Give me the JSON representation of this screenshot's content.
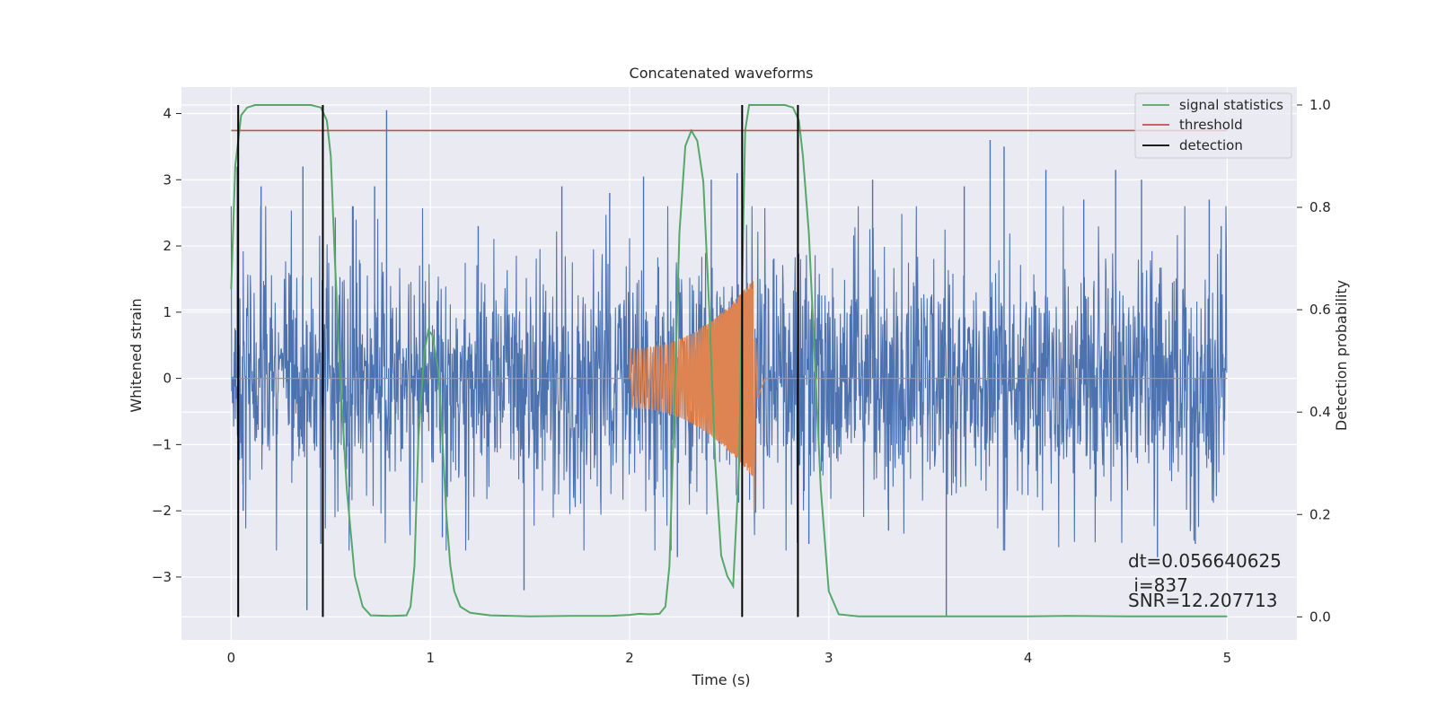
{
  "chart_data": {
    "type": "line",
    "title": "Concatenated waveforms",
    "xlabel": "Time (s)",
    "ylabel": "Whitened strain",
    "y2label": "Detection probability",
    "xlim": [
      -0.25,
      5.35
    ],
    "ylim": [
      -3.95,
      4.4
    ],
    "y2lim": [
      -0.045,
      1.035
    ],
    "xticks": [
      0,
      1,
      2,
      3,
      4,
      5
    ],
    "yticks": [
      -3,
      -2,
      -1,
      0,
      1,
      2,
      3,
      4
    ],
    "y2ticks": [
      0.0,
      0.2,
      0.4,
      0.6,
      0.8,
      1.0
    ],
    "xtick_labels": [
      "0",
      "1",
      "2",
      "3",
      "4",
      "5"
    ],
    "ytick_labels": [
      "−3",
      "−2",
      "−1",
      "0",
      "1",
      "2",
      "3",
      "4"
    ],
    "y2tick_labels": [
      "0.0",
      "0.2",
      "0.4",
      "0.6",
      "0.8",
      "1.0"
    ],
    "grid": true,
    "legend_position": "top-right",
    "strain_noise": {
      "color": "#4c72b0",
      "x_start": 0.0,
      "x_end": 5.0,
      "base_amplitude": 0.85,
      "spikes": [
        {
          "x": 0.03,
          "y": 3.2
        },
        {
          "x": 0.06,
          "y": -2.0
        },
        {
          "x": 0.15,
          "y": 2.9
        },
        {
          "x": 0.36,
          "y": 3.2
        },
        {
          "x": 0.38,
          "y": -3.5
        },
        {
          "x": 0.78,
          "y": 4.05
        },
        {
          "x": 0.45,
          "y": -2.5
        },
        {
          "x": 0.72,
          "y": 2.9
        },
        {
          "x": 1.06,
          "y": -2.4
        },
        {
          "x": 1.47,
          "y": -3.2
        },
        {
          "x": 1.66,
          "y": 2.9
        },
        {
          "x": 1.9,
          "y": 2.8
        },
        {
          "x": 2.07,
          "y": 3.05
        },
        {
          "x": 2.24,
          "y": -2.7
        },
        {
          "x": 2.41,
          "y": 3.0
        },
        {
          "x": 2.54,
          "y": 3.1
        },
        {
          "x": 3.22,
          "y": 3.0
        },
        {
          "x": 3.59,
          "y": -3.6
        },
        {
          "x": 3.68,
          "y": 2.9
        },
        {
          "x": 3.81,
          "y": 3.6
        },
        {
          "x": 3.88,
          "y": 3.5
        },
        {
          "x": 4.09,
          "y": 3.15
        },
        {
          "x": 4.28,
          "y": 2.7
        },
        {
          "x": 4.44,
          "y": 3.15
        },
        {
          "x": 4.57,
          "y": 3.0
        },
        {
          "x": 4.65,
          "y": -2.7
        },
        {
          "x": 4.84,
          "y": -2.5
        },
        {
          "x": 4.91,
          "y": 2.7
        },
        {
          "x": 4.97,
          "y": 2.3
        },
        {
          "x": 3.3,
          "y": -2.3
        },
        {
          "x": 1.24,
          "y": 2.3
        },
        {
          "x": 2.9,
          "y": -2.5
        }
      ]
    },
    "strain_signal": {
      "color": "#dd8452",
      "onset": 2.0,
      "merger": 2.62,
      "ringdown_end": 2.68,
      "amplitude_start": 0.45,
      "amplitude_peak": 1.5,
      "min_value": -2.0
    },
    "series": [
      {
        "name": "signal statistics",
        "color": "#55a868",
        "axis": "right",
        "x": [
          0.0,
          0.02,
          0.05,
          0.08,
          0.12,
          0.2,
          0.3,
          0.4,
          0.45,
          0.48,
          0.5,
          0.52,
          0.55,
          0.58,
          0.62,
          0.66,
          0.7,
          0.8,
          0.88,
          0.9,
          0.92,
          0.94,
          0.97,
          0.99,
          1.01,
          1.04,
          1.06,
          1.08,
          1.1,
          1.12,
          1.15,
          1.2,
          1.3,
          1.5,
          1.7,
          1.9,
          2.0,
          2.05,
          2.1,
          2.15,
          2.18,
          2.2,
          2.22,
          2.25,
          2.28,
          2.31,
          2.34,
          2.37,
          2.4,
          2.43,
          2.46,
          2.49,
          2.52,
          2.55,
          2.57,
          2.58,
          2.6,
          2.62,
          2.65,
          2.72,
          2.78,
          2.82,
          2.85,
          2.87,
          2.9,
          2.93,
          2.96,
          3.0,
          3.05,
          3.15,
          3.5,
          4.0,
          4.2,
          4.5,
          5.0
        ],
        "values": [
          0.64,
          0.88,
          0.98,
          0.995,
          1.0,
          1.0,
          1.0,
          1.0,
          0.995,
          0.97,
          0.9,
          0.7,
          0.45,
          0.25,
          0.08,
          0.02,
          0.003,
          0.002,
          0.003,
          0.02,
          0.1,
          0.35,
          0.52,
          0.56,
          0.55,
          0.48,
          0.35,
          0.2,
          0.1,
          0.05,
          0.02,
          0.008,
          0.003,
          0.001,
          0.002,
          0.002,
          0.004,
          0.006,
          0.005,
          0.006,
          0.02,
          0.1,
          0.35,
          0.75,
          0.92,
          0.95,
          0.93,
          0.85,
          0.6,
          0.3,
          0.12,
          0.08,
          0.06,
          0.3,
          0.75,
          0.95,
          1.0,
          1.0,
          1.0,
          1.0,
          1.0,
          0.995,
          0.97,
          0.9,
          0.75,
          0.5,
          0.25,
          0.05,
          0.005,
          0.001,
          0.001,
          0.001,
          0.002,
          0.001,
          0.001
        ]
      },
      {
        "name": "threshold",
        "color": "#c44e52",
        "axis": "right",
        "x": [
          0.0,
          5.0
        ],
        "values": [
          0.95,
          0.95
        ]
      },
      {
        "name": "detection",
        "color": "#000000",
        "axis": "right",
        "vlines": [
          0.035,
          0.46,
          2.565,
          2.845
        ],
        "vline_range": [
          0.0,
          1.0
        ]
      }
    ],
    "annotations": [
      "dt=0.056640625",
      " i=837",
      "SNR=12.207713"
    ]
  }
}
